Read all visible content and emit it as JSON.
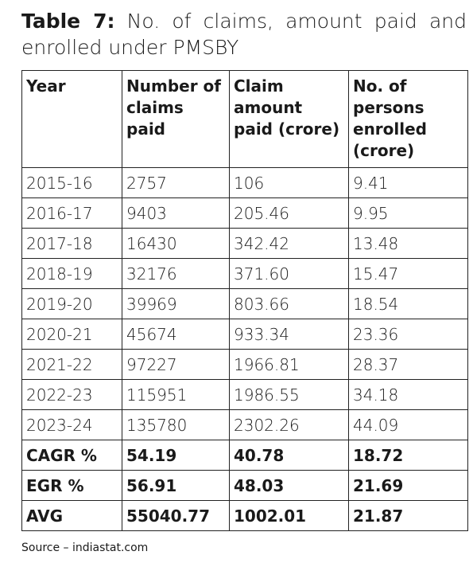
{
  "title": {
    "label": "Table 7:",
    "text": "No. of claims, amount paid and enrolled under PMSBY"
  },
  "table": {
    "header": [
      "Year",
      "Number of claims paid",
      "Claim amount paid (crore)",
      "No. of persons enrolled (crore)"
    ],
    "rows": [
      [
        "2015-16",
        "2757",
        "106",
        "9.41"
      ],
      [
        "2016-17",
        "9403",
        "205.46",
        "9.95"
      ],
      [
        "2017-18",
        "16430",
        "342.42",
        "13.48"
      ],
      [
        "2018-19",
        "32176",
        "371.60",
        "15.47"
      ],
      [
        "2019-20",
        "39969",
        "803.66",
        "18.54"
      ],
      [
        "2020-21",
        "45674",
        "933.34",
        "23.36"
      ],
      [
        "2021-22",
        "97227",
        "1966.81",
        "28.37"
      ],
      [
        "2022-23",
        "115951",
        "1986.55",
        "34.18"
      ],
      [
        "2023-24",
        "135780",
        "2302.26",
        "44.09"
      ]
    ],
    "summary": [
      [
        "CAGR %",
        "54.19",
        "40.78",
        "18.72"
      ],
      [
        "EGR %",
        "56.91",
        "48.03",
        "21.69"
      ],
      [
        "AVG",
        "55040.77",
        "1002.01",
        "21.87"
      ]
    ]
  },
  "source": "Source – indiastat.com"
}
